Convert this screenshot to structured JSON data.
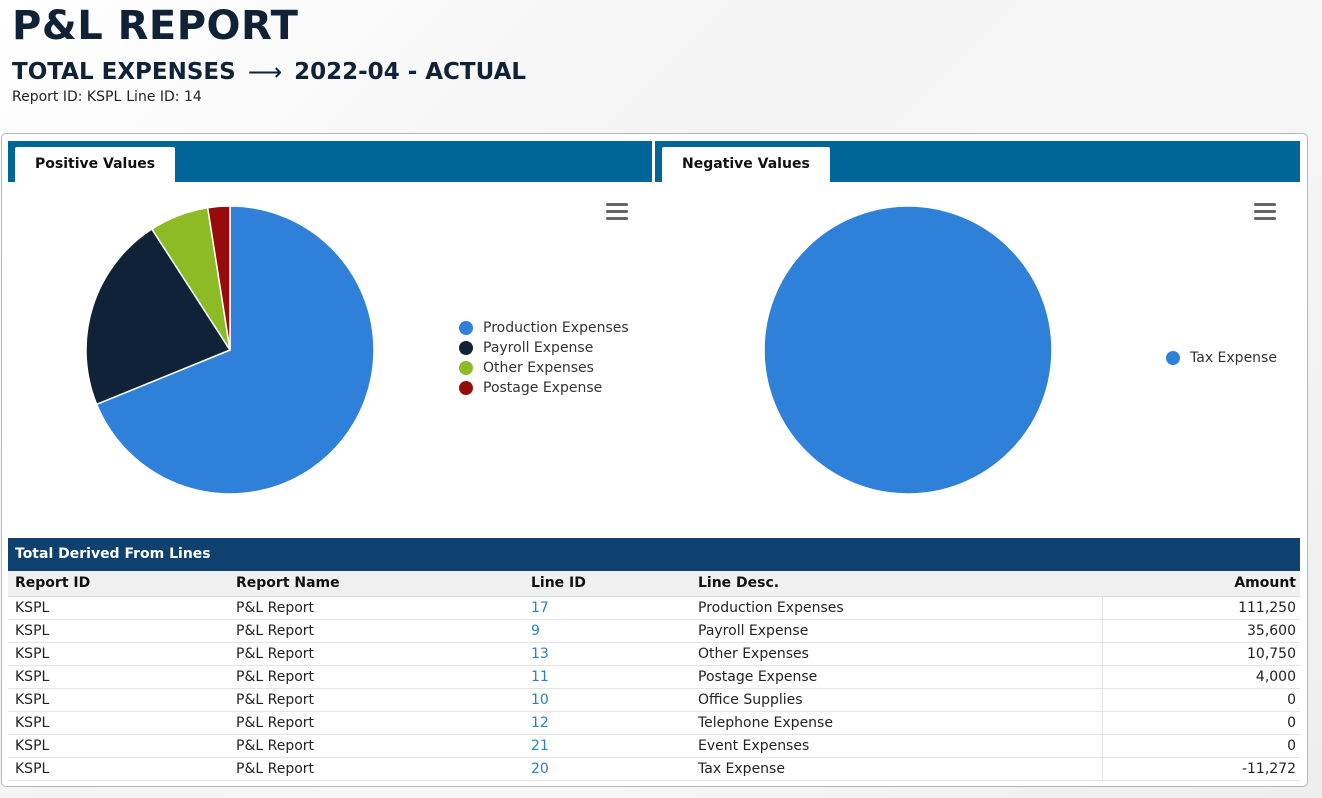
{
  "header": {
    "title": "P&L REPORT",
    "subtitle_left": "TOTAL EXPENSES",
    "subtitle_arrow": "⟶",
    "subtitle_right": "2022-04 - ACTUAL",
    "report_id_label": "Report ID: KSPL",
    "line_id_label": "Line ID: 14"
  },
  "tabs": {
    "positive": "Positive Values",
    "negative": "Negative Values"
  },
  "icons": {
    "chart_menu": "hamburger-menu-icon"
  },
  "chart_data": [
    {
      "type": "pie",
      "categories": [
        "Production Expenses",
        "Payroll Expense",
        "Other Expenses",
        "Postage Expense"
      ],
      "values": [
        111250,
        35600,
        10750,
        4000
      ],
      "colors": [
        "#2f80d8",
        "#0f2238",
        "#8dbb25",
        "#960c0c"
      ],
      "legend": "right"
    },
    {
      "type": "pie",
      "categories": [
        "Tax Expense"
      ],
      "values": [
        11272
      ],
      "colors": [
        "#2f80d8"
      ],
      "legend": "right"
    }
  ],
  "table": {
    "title": "Total Derived From Lines",
    "columns": [
      "Report ID",
      "Report Name",
      "Line ID",
      "Line Desc.",
      "Amount"
    ],
    "rows": [
      [
        "KSPL",
        "P&L Report",
        "17",
        "Production Expenses",
        "111,250"
      ],
      [
        "KSPL",
        "P&L Report",
        "9",
        "Payroll Expense",
        "35,600"
      ],
      [
        "KSPL",
        "P&L Report",
        "13",
        "Other Expenses",
        "10,750"
      ],
      [
        "KSPL",
        "P&L Report",
        "11",
        "Postage Expense",
        "4,000"
      ],
      [
        "KSPL",
        "P&L Report",
        "10",
        "Office Supplies",
        "0"
      ],
      [
        "KSPL",
        "P&L Report",
        "12",
        "Telephone Expense",
        "0"
      ],
      [
        "KSPL",
        "P&L Report",
        "21",
        "Event Expenses",
        "0"
      ],
      [
        "KSPL",
        "P&L Report",
        "20",
        "Tax Expense",
        "-11,272"
      ]
    ]
  }
}
